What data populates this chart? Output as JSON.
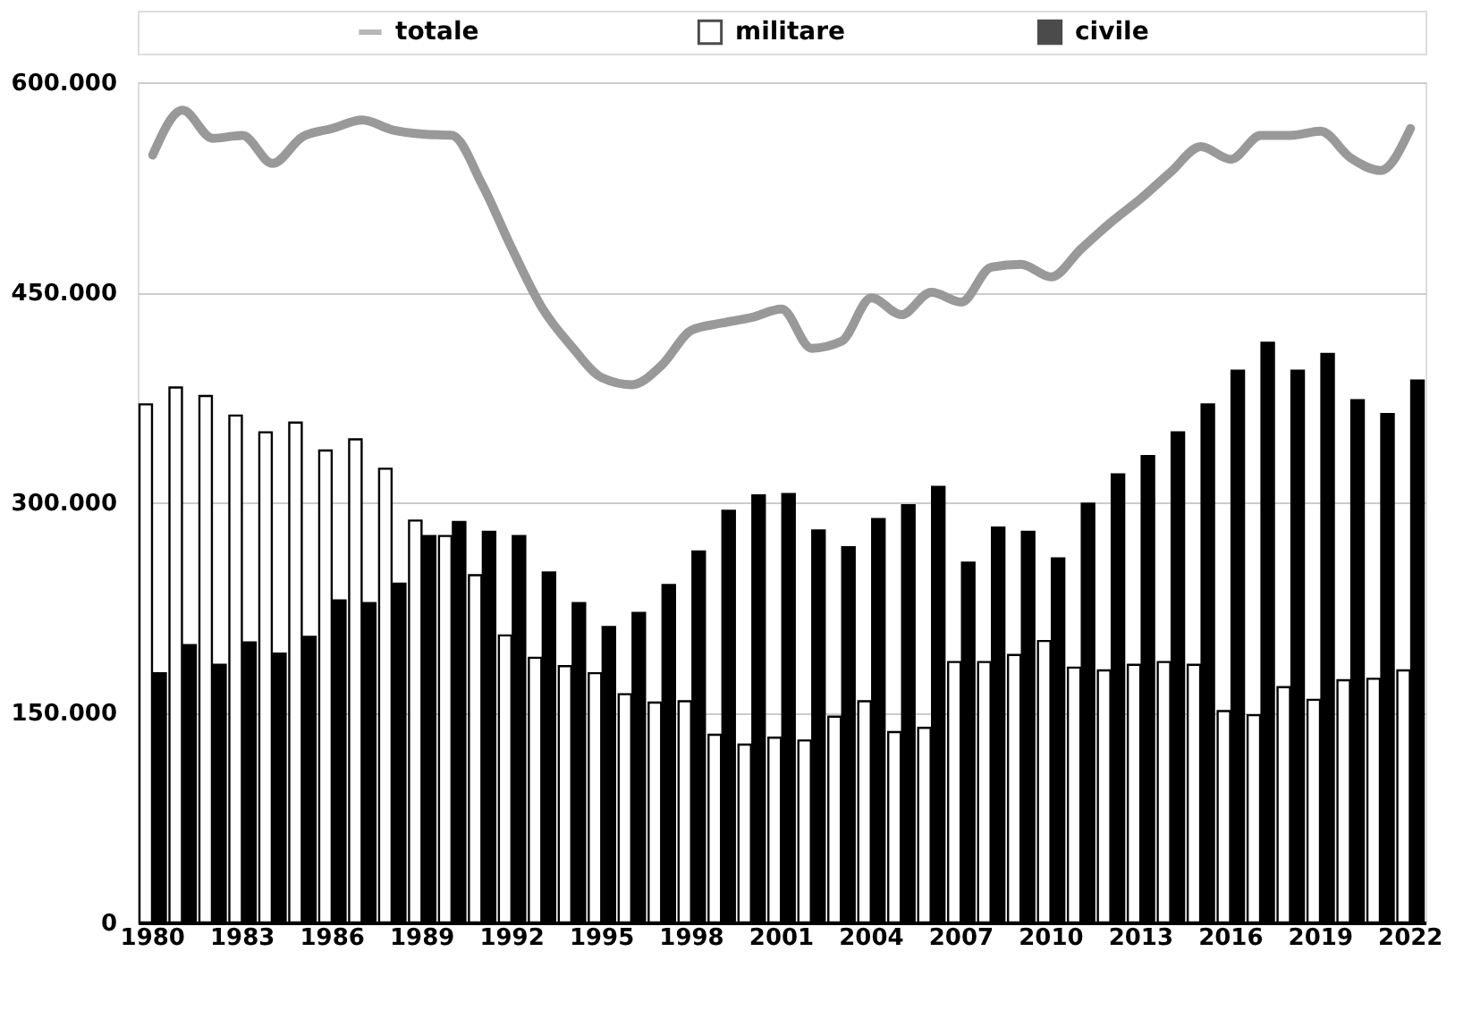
{
  "chart_data": {
    "type": "bar",
    "categories": [
      "1980",
      null,
      null,
      "1983",
      null,
      null,
      "1986",
      null,
      null,
      "1989",
      null,
      null,
      "1992",
      null,
      null,
      "1995",
      null,
      null,
      "1998",
      null,
      null,
      "2001",
      null,
      null,
      "2004",
      null,
      null,
      "2007",
      null,
      null,
      "2010",
      null,
      null,
      "2013",
      null,
      null,
      "2016",
      null,
      null,
      "2019",
      null,
      null,
      "2022"
    ],
    "series": [
      {
        "name": "totale",
        "type": "line",
        "color": "#999999",
        "values": [
          548000,
          580000,
          560000,
          562000,
          542000,
          561000,
          567000,
          573000,
          566000,
          563000,
          562000,
          527000,
          481000,
          439000,
          411000,
          389000,
          384000,
          398000,
          423000,
          428000,
          432000,
          438000,
          410000,
          415000,
          446000,
          434000,
          450000,
          443000,
          468000,
          470000,
          461000,
          481000,
          500000,
          517000,
          536000,
          554000,
          545000,
          562000,
          562000,
          565000,
          546000,
          537000,
          567000
        ]
      },
      {
        "name": "militare",
        "color": "#ffffff",
        "values": [
          370000,
          382000,
          376000,
          362000,
          350000,
          357000,
          337000,
          345000,
          324000,
          287000,
          276000,
          248000,
          205000,
          189000,
          183000,
          178000,
          163000,
          157000,
          158000,
          134000,
          127000,
          132000,
          130000,
          147000,
          158000,
          136000,
          139000,
          186000,
          186000,
          191000,
          201000,
          182000,
          180000,
          184000,
          186000,
          184000,
          151000,
          148000,
          168000,
          159000,
          173000,
          174000,
          180000
        ]
      },
      {
        "name": "civile",
        "color": "#000000",
        "values": [
          178000,
          198000,
          184000,
          200000,
          192000,
          204000,
          230000,
          228000,
          242000,
          276000,
          286000,
          279000,
          276000,
          250000,
          228000,
          211000,
          221000,
          241000,
          265000,
          294000,
          305000,
          306000,
          280000,
          268000,
          288000,
          298000,
          311000,
          257000,
          282000,
          279000,
          260000,
          299000,
          320000,
          333000,
          350000,
          370000,
          394000,
          414000,
          394000,
          406000,
          373000,
          363000,
          387000
        ]
      }
    ],
    "ylim": [
      0,
      600000
    ],
    "yticks": [
      {
        "value": 0,
        "label": "0"
      },
      {
        "value": 150000,
        "label": "150.000"
      },
      {
        "value": 300000,
        "label": "300.000"
      },
      {
        "value": 450000,
        "label": "450.000"
      },
      {
        "value": 600000,
        "label": "600.000"
      }
    ],
    "grid": "y",
    "legend": "top"
  }
}
